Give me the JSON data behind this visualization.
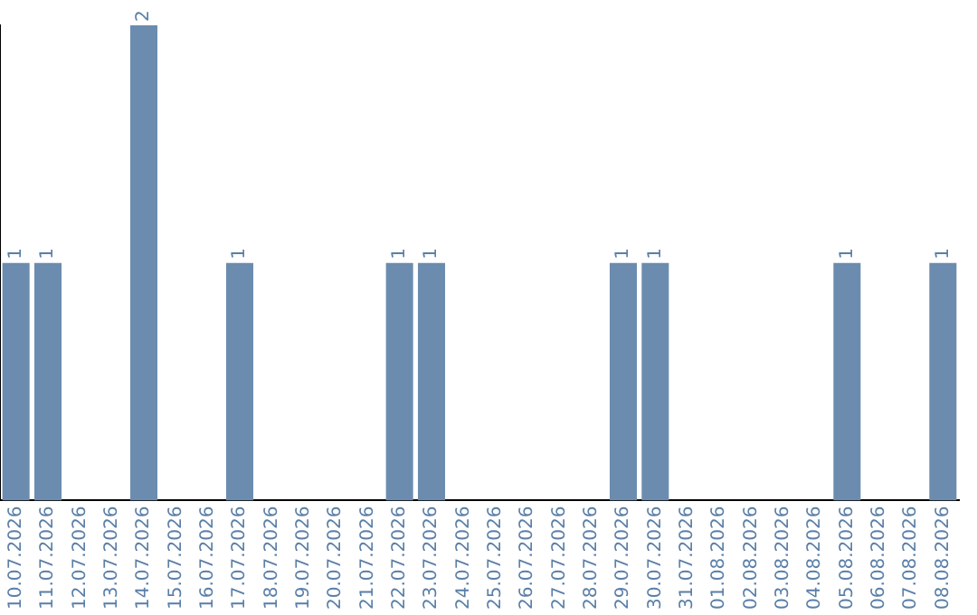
{
  "chart_data": {
    "type": "bar",
    "tick_labels": "x",
    "color": "#6b8cae",
    "categories": [
      "10.07.2026",
      "11.07.2026",
      "12.07.2026",
      "13.07.2026",
      "14.07.2026",
      "15.07.2026",
      "16.07.2026",
      "17.07.2026",
      "18.07.2026",
      "19.07.2026",
      "20.07.2026",
      "21.07.2026",
      "22.07.2026",
      "23.07.2026",
      "24.07.2026",
      "25.07.2026",
      "26.07.2026",
      "27.07.2026",
      "28.07.2026",
      "29.07.2026",
      "30.07.2026",
      "31.07.2026",
      "01.08.2026",
      "02.08.2026",
      "03.08.2026",
      "04.08.2026",
      "05.08.2026",
      "06.08.2026",
      "07.08.2026",
      "08.08.2026"
    ],
    "values": [
      1,
      1,
      0,
      0,
      2,
      0,
      0,
      1,
      0,
      0,
      0,
      0,
      1,
      1,
      0,
      0,
      0,
      0,
      0,
      1,
      1,
      0,
      0,
      0,
      0,
      0,
      1,
      0,
      0,
      1
    ],
    "value_labels": [
      "1",
      "1",
      null,
      null,
      "2",
      null,
      null,
      "1",
      null,
      null,
      null,
      null,
      "1",
      "1",
      null,
      null,
      null,
      null,
      null,
      "1",
      "1",
      null,
      null,
      null,
      null,
      null,
      "1",
      null,
      null,
      "1"
    ]
  }
}
